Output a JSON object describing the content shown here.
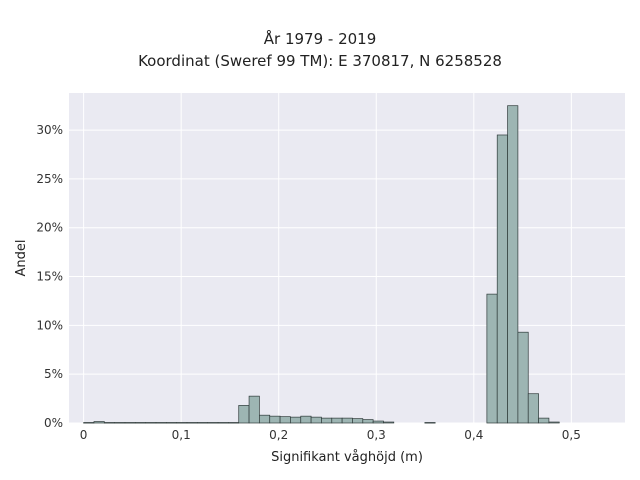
{
  "chart_data": {
    "type": "bar",
    "title": "År 1979 - 2019",
    "subtitle": "Koordinat (Sweref 99 TM): E 370817, N 6258528",
    "xlabel": "Signifikant våghöjd (m)",
    "ylabel": "Andel",
    "xlim": [
      -0.015,
      0.555
    ],
    "ylim": [
      0,
      33.8
    ],
    "xticks": [
      0,
      0.1,
      0.2,
      0.3,
      0.4,
      0.5
    ],
    "xtick_labels": [
      "0",
      "0,1",
      "0,2",
      "0,3",
      "0,4",
      "0,5"
    ],
    "yticks": [
      0,
      5,
      10,
      15,
      20,
      25,
      30
    ],
    "ytick_labels": [
      "0%",
      "5%",
      "10%",
      "15%",
      "20%",
      "25%",
      "30%"
    ],
    "bin_width": 0.0106,
    "bins": [
      {
        "x0": 0.0,
        "value": 0.05
      },
      {
        "x0": 0.0106,
        "value": 0.15
      },
      {
        "x0": 0.0212,
        "value": 0.05
      },
      {
        "x0": 0.0318,
        "value": 0.05
      },
      {
        "x0": 0.0424,
        "value": 0.05
      },
      {
        "x0": 0.053,
        "value": 0.05
      },
      {
        "x0": 0.0636,
        "value": 0.05
      },
      {
        "x0": 0.0742,
        "value": 0.05
      },
      {
        "x0": 0.0848,
        "value": 0.05
      },
      {
        "x0": 0.0954,
        "value": 0.05
      },
      {
        "x0": 0.106,
        "value": 0.05
      },
      {
        "x0": 0.1166,
        "value": 0.05
      },
      {
        "x0": 0.1272,
        "value": 0.05
      },
      {
        "x0": 0.1378,
        "value": 0.05
      },
      {
        "x0": 0.1484,
        "value": 0.05
      },
      {
        "x0": 0.159,
        "value": 1.8
      },
      {
        "x0": 0.1696,
        "value": 2.75
      },
      {
        "x0": 0.1802,
        "value": 0.8
      },
      {
        "x0": 0.1908,
        "value": 0.7
      },
      {
        "x0": 0.2014,
        "value": 0.65
      },
      {
        "x0": 0.212,
        "value": 0.6
      },
      {
        "x0": 0.2226,
        "value": 0.7
      },
      {
        "x0": 0.2332,
        "value": 0.6
      },
      {
        "x0": 0.2438,
        "value": 0.5
      },
      {
        "x0": 0.2544,
        "value": 0.5
      },
      {
        "x0": 0.265,
        "value": 0.5
      },
      {
        "x0": 0.2756,
        "value": 0.45
      },
      {
        "x0": 0.2862,
        "value": 0.35
      },
      {
        "x0": 0.2968,
        "value": 0.2
      },
      {
        "x0": 0.3074,
        "value": 0.1
      },
      {
        "x0": 0.3498,
        "value": 0.05
      },
      {
        "x0": 0.4134,
        "value": 13.2
      },
      {
        "x0": 0.424,
        "value": 29.5
      },
      {
        "x0": 0.4346,
        "value": 32.5
      },
      {
        "x0": 0.4452,
        "value": 9.3
      },
      {
        "x0": 0.4558,
        "value": 3.0
      },
      {
        "x0": 0.4664,
        "value": 0.5
      },
      {
        "x0": 0.477,
        "value": 0.1
      }
    ],
    "colors": {
      "plot_background": "#eaeaf2",
      "grid": "#ffffff",
      "bar_fill": "#9db5b3",
      "bar_edge": "#2f3b3a"
    },
    "grid": true
  }
}
